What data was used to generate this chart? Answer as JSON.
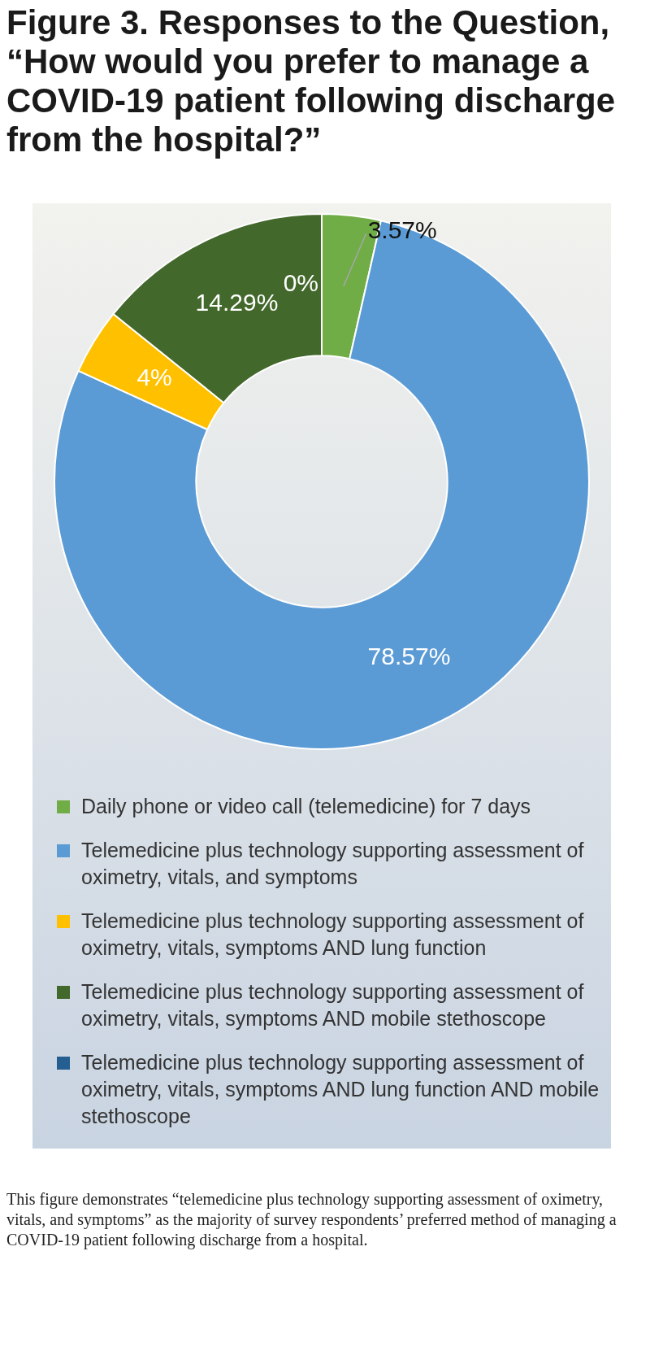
{
  "chart_data": {
    "type": "donut",
    "title": "Figure 3. Responses to the Question, “How would you prefer to manage a COVID-19 patient following discharge from the hospital?”",
    "categories": [
      "Daily phone or video call (telemedicine) for 7 days",
      "Telemedicine plus technology supporting assessment of oximetry, vitals, and symptoms",
      "Telemedicine plus technology supporting assessment of oximetry, vitals, symptoms AND lung function",
      "Telemedicine plus technology supporting assessment of oximetry, vitals, symptoms AND mobile stethoscope",
      "Telemedicine plus technology supporting assessment of oximetry, vitals, symptoms AND lung function AND mobile stethoscope"
    ],
    "values": [
      3.57,
      78.57,
      4,
      14.29,
      0
    ],
    "colors": [
      "#70ad47",
      "#5b9bd5",
      "#ffc000",
      "#43682b",
      "#255e91"
    ],
    "value_labels": [
      "3.57%",
      "78.57%",
      "4%",
      "14.29%",
      "0%"
    ],
    "legend": "bottom",
    "annotations": [
      "This figure demonstrates “telemedicine plus technology supporting assessment of oximetry, vitals, and symptoms” as the majority of survey respondents’ preferred method of managing a COVID-19 patient following discharge from a hospital."
    ]
  }
}
